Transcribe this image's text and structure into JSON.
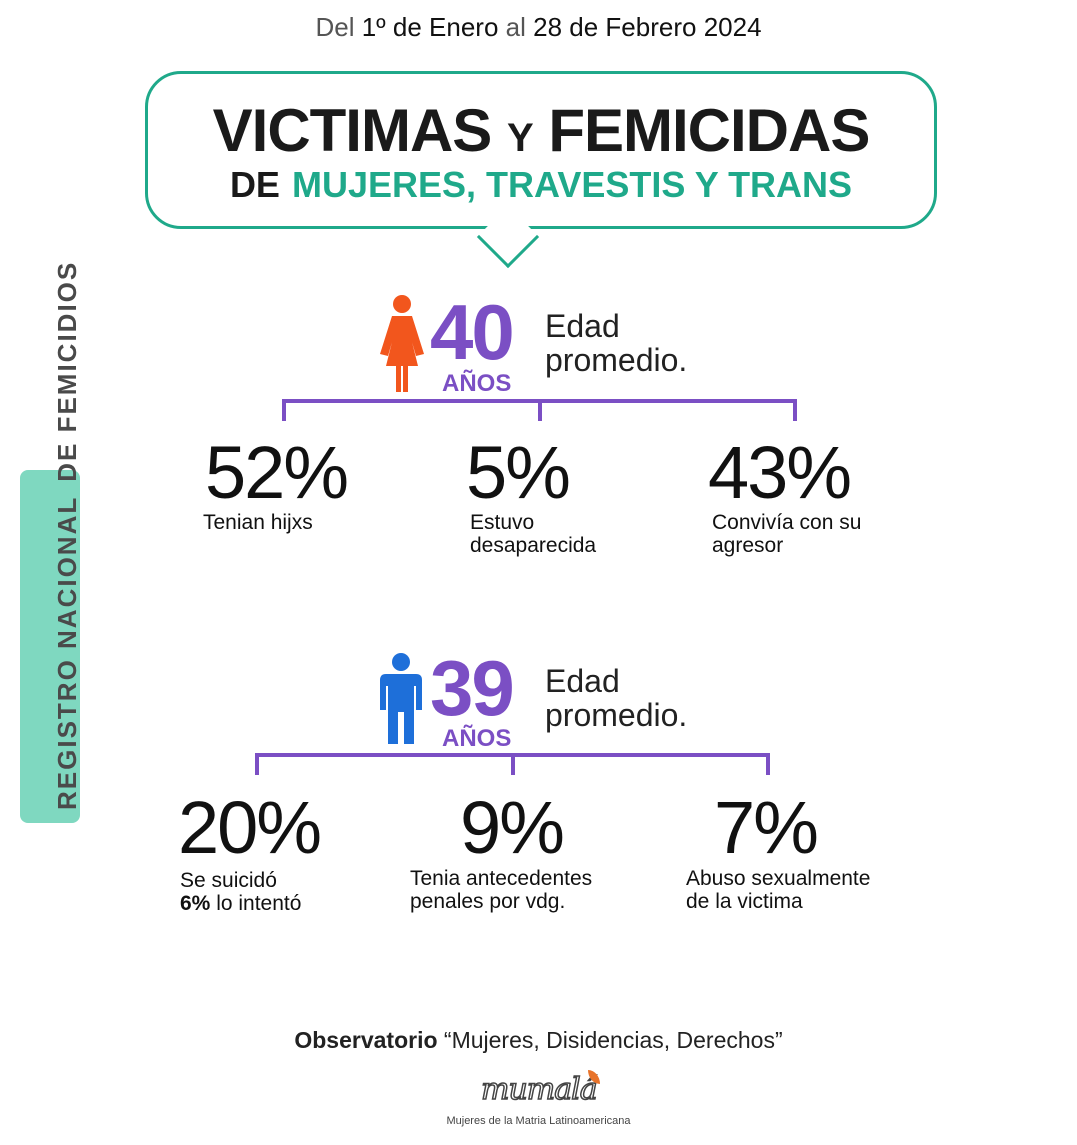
{
  "header": {
    "date_del": "Del",
    "date_from": "1º de Enero",
    "date_al": "al",
    "date_to": "28 de Febrero 2024"
  },
  "title": {
    "line1_a": "VICTIMAS",
    "line1_y": "Y",
    "line1_b": "FEMICIDAS",
    "line2_de": "DE",
    "line2_rest": "MUJERES, TRAVESTIS Y TRANS"
  },
  "sidebar": {
    "part1": "REGISTRO NACIONAL",
    "part2": "DE FEMICIDIOS"
  },
  "victims": {
    "icon": "woman-icon",
    "icon_color": "#f2561d",
    "age": "40",
    "age_unit": "AÑOS",
    "age_desc_1": "Edad",
    "age_desc_2": "promedio.",
    "stats": [
      {
        "value": "52%",
        "label_1": "Tenian hijxs",
        "label_2": ""
      },
      {
        "value": "5%",
        "label_1": "Estuvo",
        "label_2": "desaparecida"
      },
      {
        "value": "43%",
        "label_1": "Convivía con su",
        "label_2": "agresor"
      }
    ]
  },
  "aggressors": {
    "icon": "man-icon",
    "icon_color": "#1e6fd9",
    "age": "39",
    "age_unit": "AÑOS",
    "age_desc_1": "Edad",
    "age_desc_2": "promedio.",
    "stats": [
      {
        "value": "20%",
        "label_1": "Se suicidó",
        "label_2_bold": "6%",
        "label_2": " lo intentó"
      },
      {
        "value": "9%",
        "label_1": "Tenia antecedentes",
        "label_2": "penales por vdg."
      },
      {
        "value": "7%",
        "label_1": "Abuso sexualmente",
        "label_2": "de la victima"
      }
    ]
  },
  "footer": {
    "org_bold": "Observatorio",
    "org_rest": " “Mujeres, Disidencias, Derechos”",
    "logo_text": "mumalá",
    "logo_sub": "Mujeres de la Matria Latinoamericana"
  },
  "colors": {
    "accent_teal": "#1fa98a",
    "accent_purple": "#7b4fc4",
    "sidebar_bg": "#7fd8c0"
  }
}
